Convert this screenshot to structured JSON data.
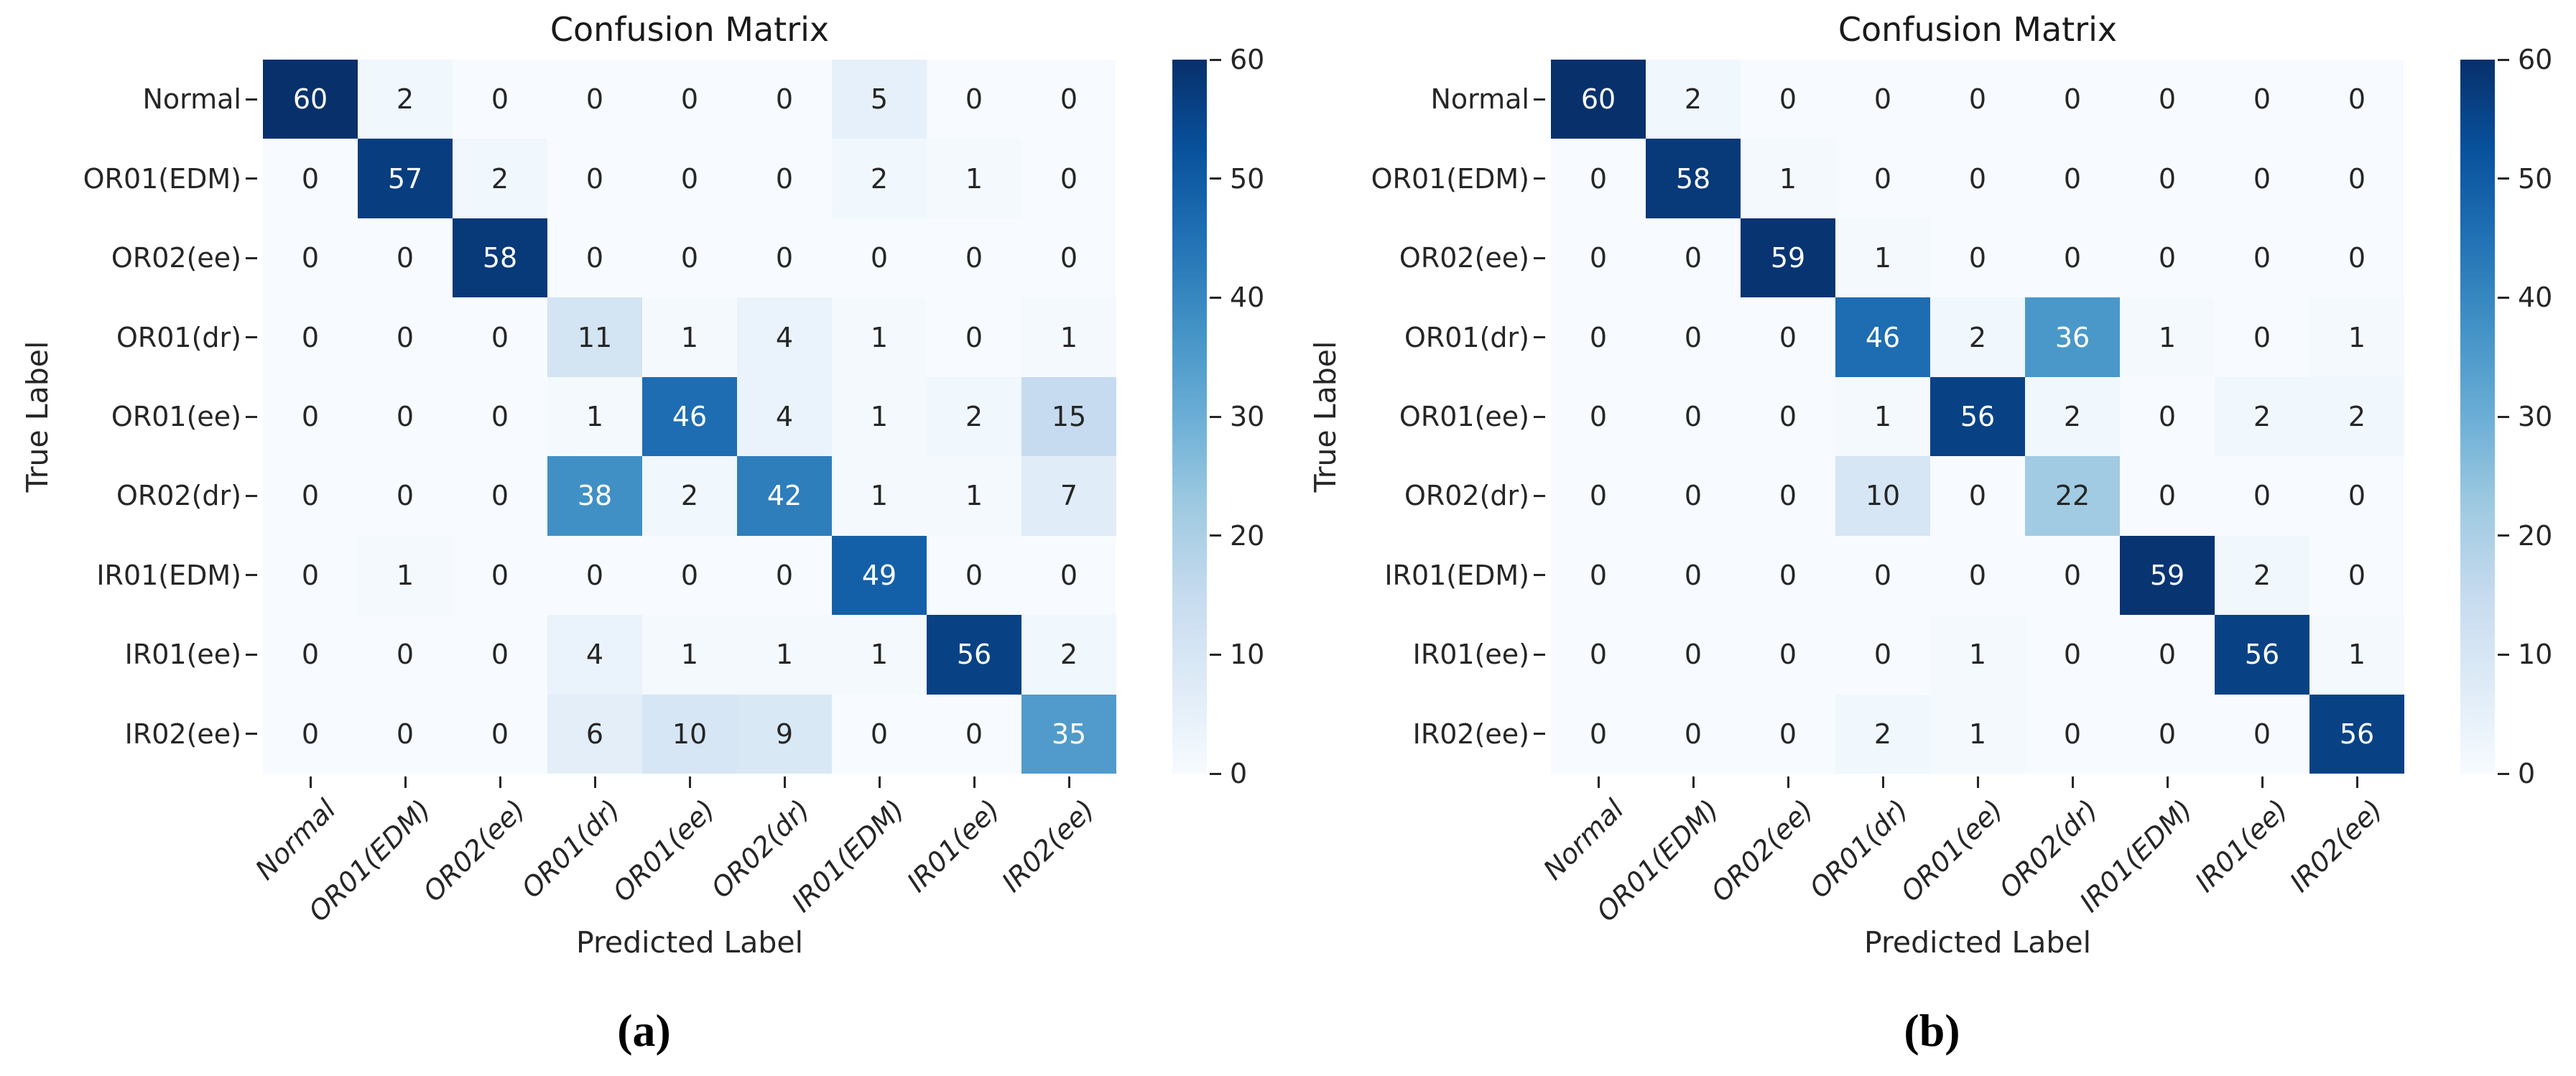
{
  "chart_data": [
    {
      "type": "heatmap",
      "title": "Confusion Matrix",
      "xlabel": "Predicted Label",
      "ylabel": "True Label",
      "caption": "(a)",
      "x_categories": [
        "Normal",
        "OR01(EDM)",
        "OR02(ee)",
        "OR01(dr)",
        "OR01(ee)",
        "OR02(dr)",
        "IR01(EDM)",
        "IR01(ee)",
        "IR02(ee)"
      ],
      "y_categories": [
        "Normal",
        "OR01(EDM)",
        "OR02(ee)",
        "OR01(dr)",
        "OR01(ee)",
        "OR02(dr)",
        "IR01(EDM)",
        "IR01(ee)",
        "IR02(ee)"
      ],
      "matrix": [
        [
          60,
          2,
          0,
          0,
          0,
          0,
          5,
          0,
          0
        ],
        [
          0,
          57,
          2,
          0,
          0,
          0,
          2,
          1,
          0
        ],
        [
          0,
          0,
          58,
          0,
          0,
          0,
          0,
          0,
          0
        ],
        [
          0,
          0,
          0,
          11,
          1,
          4,
          1,
          0,
          1
        ],
        [
          0,
          0,
          0,
          1,
          46,
          4,
          1,
          2,
          15
        ],
        [
          0,
          0,
          0,
          38,
          2,
          42,
          1,
          1,
          7
        ],
        [
          0,
          1,
          0,
          0,
          0,
          0,
          49,
          0,
          0
        ],
        [
          0,
          0,
          0,
          4,
          1,
          1,
          1,
          56,
          2
        ],
        [
          0,
          0,
          0,
          6,
          10,
          9,
          0,
          0,
          35
        ]
      ],
      "colorbar": {
        "min": 0,
        "max": 60,
        "ticks": [
          0,
          10,
          20,
          30,
          40,
          50,
          60
        ]
      },
      "colormap": "Blues",
      "legend_position": "right-colorbar",
      "grid": false
    },
    {
      "type": "heatmap",
      "title": "Confusion Matrix",
      "xlabel": "Predicted Label",
      "ylabel": "True Label",
      "caption": "(b)",
      "x_categories": [
        "Normal",
        "OR01(EDM)",
        "OR02(ee)",
        "OR01(dr)",
        "OR01(ee)",
        "OR02(dr)",
        "IR01(EDM)",
        "IR01(ee)",
        "IR02(ee)"
      ],
      "y_categories": [
        "Normal",
        "OR01(EDM)",
        "OR02(ee)",
        "OR01(dr)",
        "OR01(ee)",
        "OR02(dr)",
        "IR01(EDM)",
        "IR01(ee)",
        "IR02(ee)"
      ],
      "matrix": [
        [
          60,
          2,
          0,
          0,
          0,
          0,
          0,
          0,
          0
        ],
        [
          0,
          58,
          1,
          0,
          0,
          0,
          0,
          0,
          0
        ],
        [
          0,
          0,
          59,
          1,
          0,
          0,
          0,
          0,
          0
        ],
        [
          0,
          0,
          0,
          46,
          2,
          36,
          1,
          0,
          1
        ],
        [
          0,
          0,
          0,
          1,
          56,
          2,
          0,
          2,
          2
        ],
        [
          0,
          0,
          0,
          10,
          0,
          22,
          0,
          0,
          0
        ],
        [
          0,
          0,
          0,
          0,
          0,
          0,
          59,
          2,
          0
        ],
        [
          0,
          0,
          0,
          0,
          1,
          0,
          0,
          56,
          1
        ],
        [
          0,
          0,
          0,
          2,
          1,
          0,
          0,
          0,
          56
        ]
      ],
      "colorbar": {
        "min": 0,
        "max": 60,
        "ticks": [
          0,
          10,
          20,
          30,
          40,
          50,
          60
        ]
      },
      "colormap": "Blues",
      "legend_position": "right-colorbar",
      "grid": false
    }
  ],
  "style": {
    "colormap_anchors": [
      "#f7fbff",
      "#deebf7",
      "#c6dbef",
      "#9ecae1",
      "#6baed6",
      "#4292c6",
      "#2171b5",
      "#08519c",
      "#08306b"
    ],
    "annotation_dark_text": "#262626",
    "annotation_light_text": "#ffffff"
  }
}
